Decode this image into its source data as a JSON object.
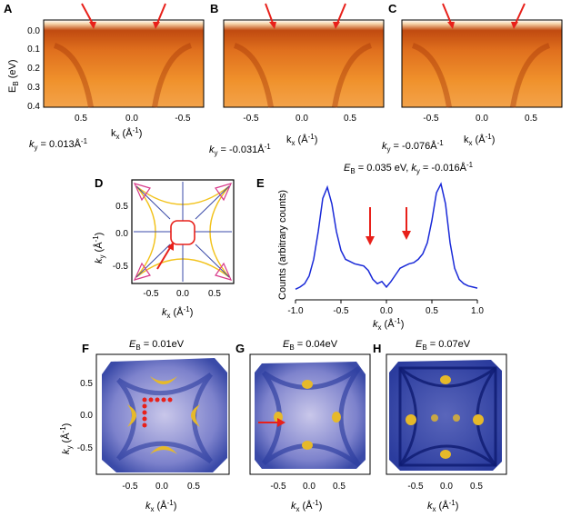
{
  "panels_top": [
    {
      "letter": "A",
      "caption": "k",
      "caption_sub": "y",
      "caption_val": " = 0.013Å",
      "caption_sup": "-1",
      "xticks": [
        "0.5",
        "0.0",
        "-0.5"
      ]
    },
    {
      "letter": "B",
      "caption": "k",
      "caption_sub": "y",
      "caption_val": " = -0.031Å",
      "caption_sup": "-1",
      "xticks": [
        "-0.5",
        "0.0",
        "0.5"
      ]
    },
    {
      "letter": "C",
      "caption": "k",
      "caption_sub": "y",
      "caption_val": " = -0.076Å",
      "caption_sup": "-1",
      "xticks": [
        "-0.5",
        "0.0",
        "0.5"
      ]
    }
  ],
  "ylabel_top": {
    "main": "E",
    "sub": "B",
    "unit": " (eV)"
  },
  "yticks_top": [
    "0.0",
    "0.1",
    "0.2",
    "0.3",
    "0.4"
  ],
  "xlabel_k": {
    "main": "k",
    "sub": "x",
    "unit": " (Å",
    "sup": "-1",
    "close": ")"
  },
  "ylabel_ky": {
    "main": "k",
    "sub": "y",
    "unit": " (Å",
    "sup": "-1",
    "close": ")"
  },
  "panel_d": {
    "letter": "D",
    "ticks": [
      "0.5",
      "0.0",
      "-0.5"
    ],
    "xticks": [
      "-0.5",
      "0.0",
      "0.5"
    ]
  },
  "panel_e": {
    "letter": "E",
    "title_main": "E",
    "title_sub": "B",
    "title_rest": " = 0.035 eV, ",
    "title_k": "k",
    "title_ksub": "y",
    "title_kval": " = -0.016Å",
    "title_sup": "-1",
    "ylabel": "Counts (arbitrary counts)",
    "xticks": [
      "-1.0",
      "-0.5",
      "0.0",
      "0.5",
      "1.0"
    ]
  },
  "panels_bottom": [
    {
      "letter": "F",
      "title_main": "E",
      "title_sub": "B",
      "title_rest": " = 0.01eV",
      "xticks": [
        "-0.5",
        "0.0",
        "0.5"
      ]
    },
    {
      "letter": "G",
      "title_main": "E",
      "title_sub": "B",
      "title_rest": " = 0.04eV",
      "xticks": [
        "-0.5",
        "0.0",
        "0.5"
      ]
    },
    {
      "letter": "H",
      "title_main": "E",
      "title_sub": "B",
      "title_rest": " = 0.07eV",
      "xticks": [
        "-0.5",
        "0.0",
        "0.5"
      ]
    }
  ],
  "yticks_f": [
    "0.5",
    "0.0",
    "-0.5"
  ],
  "chart_data": {
    "type": "line",
    "xlabel": "kx (Å-1)",
    "ylabel": "Counts (arbitrary counts)",
    "xlim": [
      -1.0,
      1.0
    ],
    "series": [
      {
        "x": [
          -1.0,
          -0.95,
          -0.9,
          -0.85,
          -0.8,
          -0.75,
          -0.7,
          -0.65,
          -0.6,
          -0.55,
          -0.5,
          -0.45,
          -0.4,
          -0.35,
          -0.3,
          -0.25,
          -0.2,
          -0.15,
          -0.1,
          -0.05,
          0.0,
          0.05,
          0.1,
          0.15,
          0.2,
          0.25,
          0.3,
          0.35,
          0.4,
          0.45,
          0.5,
          0.55,
          0.6,
          0.65,
          0.7,
          0.75,
          0.8,
          0.85,
          0.9,
          0.95,
          1.0
        ],
        "y": [
          0.03,
          0.05,
          0.08,
          0.15,
          0.3,
          0.55,
          0.85,
          0.95,
          0.8,
          0.55,
          0.38,
          0.3,
          0.28,
          0.26,
          0.25,
          0.24,
          0.2,
          0.12,
          0.08,
          0.1,
          0.05,
          0.1,
          0.16,
          0.22,
          0.24,
          0.26,
          0.27,
          0.3,
          0.35,
          0.45,
          0.65,
          0.9,
          0.98,
          0.8,
          0.45,
          0.22,
          0.12,
          0.08,
          0.06,
          0.05,
          0.04
        ]
      }
    ]
  }
}
